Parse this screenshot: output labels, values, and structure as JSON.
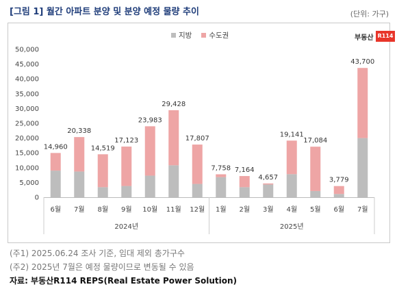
{
  "title": "[그림 1] 월간 아파트 분양 및 분양 예정 물량 추이",
  "unit": "(단위: 가구)",
  "brand": {
    "name": "부동산",
    "box": "R114"
  },
  "notes": [
    "(주1) 2025.06.24 조사 기준, 임대 제외 총가구수",
    "(주2) 2025년 7월은 예정 물량이므로 변동될 수 있음"
  ],
  "source": "자료: 부동산R114 REPS(Real Estate Power Solution)",
  "colors": {
    "local": "#bdbdbd",
    "capital": "#eea5a5"
  },
  "chart_data": {
    "type": "bar",
    "stacked": true,
    "categories": [
      "6월",
      "7월",
      "8월",
      "9월",
      "10월",
      "11월",
      "12월",
      "1월",
      "2월",
      "3월",
      "4월",
      "5월",
      "6월",
      "7월"
    ],
    "groups": [
      {
        "label": "2024년",
        "from": 0,
        "to": 6
      },
      {
        "label": "2025년",
        "from": 7,
        "to": 13
      }
    ],
    "series": [
      {
        "name": "지방",
        "values": [
          9000,
          8700,
          3400,
          3800,
          7300,
          10800,
          4500,
          6800,
          3400,
          4300,
          7800,
          2100,
          1100,
          20000
        ]
      },
      {
        "name": "수도권",
        "values": [
          5960,
          11638,
          11119,
          13323,
          16683,
          18628,
          13307,
          958,
          3764,
          357,
          11341,
          14984,
          2679,
          23700
        ]
      }
    ],
    "totals": [
      "14,960",
      "20,338",
      "14,519",
      "17,123",
      "23,983",
      "29,428",
      "17,807",
      "7,758",
      "7,164",
      "4,657",
      "19,141",
      "17,084",
      "3,779",
      "43,700"
    ],
    "ylim": [
      0,
      50000
    ],
    "yticks": [
      "0",
      "5,000",
      "10,000",
      "15,000",
      "20,000",
      "25,000",
      "30,000",
      "35,000",
      "40,000",
      "45,000",
      "50,000"
    ],
    "legend_position": "top-center",
    "grid": false
  }
}
